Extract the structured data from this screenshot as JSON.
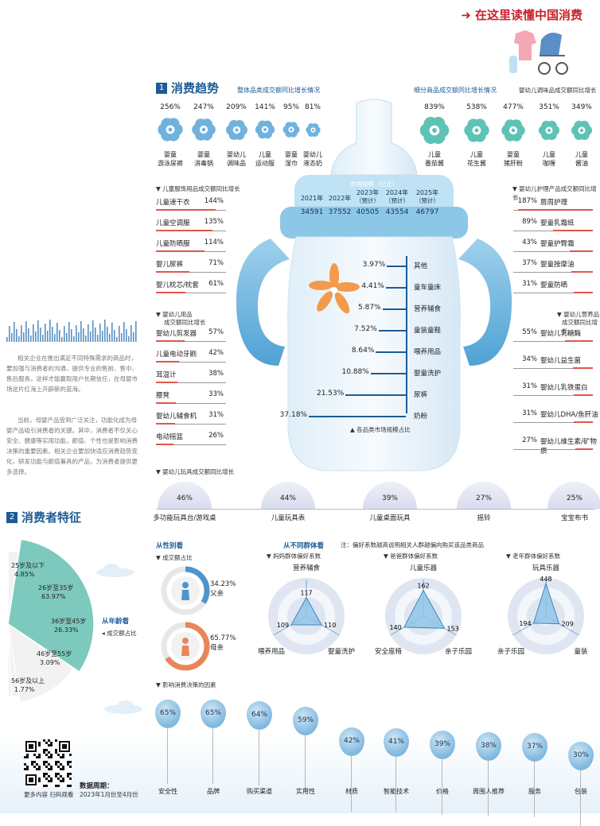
{
  "header": {
    "title": "在这里读懂中国消费"
  },
  "section1": {
    "num": "1",
    "title": "消费趋势",
    "overall_subtitle": "整体品类成交额同比增长情况",
    "segment_subtitle": "细分商品成交额同比增长情况",
    "seasoning_subtitle": "婴幼儿调味品成交额同比增长"
  },
  "overall_items": [
    {
      "pct": "256%",
      "label1": "婴童",
      "label2": "游泳尿裤"
    },
    {
      "pct": "247%",
      "label1": "婴童",
      "label2": "消毒锅"
    },
    {
      "pct": "209%",
      "label1": "婴幼儿",
      "label2": "调味品"
    },
    {
      "pct": "141%",
      "label1": "儿童",
      "label2": "运动服"
    },
    {
      "pct": "95%",
      "label1": "婴童",
      "label2": "湿巾"
    },
    {
      "pct": "81%",
      "label1": "婴幼儿",
      "label2": "液态奶"
    }
  ],
  "seasoning_items": [
    {
      "pct": "839%",
      "label1": "儿童",
      "label2": "番茄酱"
    },
    {
      "pct": "538%",
      "label1": "儿童",
      "label2": "花生酱"
    },
    {
      "pct": "477%",
      "label1": "婴童",
      "label2": "猪肝粉"
    },
    {
      "pct": "351%",
      "label1": "儿童",
      "label2": "咖喱"
    },
    {
      "pct": "349%",
      "label1": "儿童",
      "label2": "酱油"
    }
  ],
  "market": {
    "title": "市场规模（亿元）",
    "years": [
      "2021年",
      "2022年",
      "2023年",
      "2024年",
      "2025年"
    ],
    "notes": [
      "",
      "",
      "（预计）",
      "（预计）",
      "（预计）"
    ],
    "values": [
      "34591",
      "37552",
      "40505",
      "43554",
      "46797"
    ]
  },
  "share_legend": "各品类市场规模占比",
  "shares": [
    {
      "pct": "3.97%",
      "label": "其他",
      "value": 3.97
    },
    {
      "pct": "4.41%",
      "label": "童车童床",
      "value": 4.41
    },
    {
      "pct": "5.87%",
      "label": "营养辅食",
      "value": 5.87
    },
    {
      "pct": "7.52%",
      "label": "童装童鞋",
      "value": 7.52
    },
    {
      "pct": "8.64%",
      "label": "喂养用品",
      "value": 8.64
    },
    {
      "pct": "10.88%",
      "label": "婴童洗护",
      "value": 10.88
    },
    {
      "pct": "21.53%",
      "label": "尿裤",
      "value": 21.53
    },
    {
      "pct": "37.18%",
      "label": "奶粉",
      "value": 37.18
    }
  ],
  "left_lists": {
    "clothing_title": "儿童服饰用品成交额同比增长",
    "clothing": [
      {
        "label": "儿童速干衣",
        "pct": "144%"
      },
      {
        "label": "儿童空调服",
        "pct": "135%"
      },
      {
        "label": "儿童防晒服",
        "pct": "114%"
      },
      {
        "label": "婴儿尿裤",
        "pct": "71%"
      },
      {
        "label": "婴儿枕芯/枕套",
        "pct": "61%"
      }
    ],
    "supplies_title1": "婴幼儿用品",
    "supplies_title2": "成交额同比增长",
    "supplies": [
      {
        "label": "婴幼儿剪发器",
        "pct": "57%"
      },
      {
        "label": "儿童电动牙刷",
        "pct": "42%"
      },
      {
        "label": "耳温计",
        "pct": "38%"
      },
      {
        "label": "腰凳",
        "pct": "33%"
      },
      {
        "label": "婴幼儿辅食机",
        "pct": "31%"
      },
      {
        "label": "电动摇篮",
        "pct": "26%"
      }
    ]
  },
  "right_lists": {
    "care_title": "婴幼儿护理产品成交额同比增长",
    "care": [
      {
        "label": "唇周护理",
        "pct": "187%"
      },
      {
        "label": "婴童乳霜纸",
        "pct": "89%"
      },
      {
        "label": "婴童护臀霜",
        "pct": "43%"
      },
      {
        "label": "婴童按摩油",
        "pct": "37%"
      },
      {
        "label": "婴童防晒",
        "pct": "31%"
      }
    ],
    "nutrition_title1": "婴幼儿营养品",
    "nutrition_title2": "成交额同比增长",
    "nutrition": [
      {
        "label": "婴幼儿乳糖酶",
        "pct": "55%"
      },
      {
        "label": "婴幼儿益生菌",
        "pct": "34%"
      },
      {
        "label": "婴幼儿乳铁蛋白",
        "pct": "31%"
      },
      {
        "label": "婴幼儿DHA/鱼肝油",
        "pct": "31%"
      },
      {
        "label": "婴幼儿维生素/矿物质",
        "pct": "27%"
      }
    ]
  },
  "toys": {
    "title": "婴幼儿玩具成交额同比增长",
    "items": [
      {
        "pct": "46%",
        "label": "多功能玩具台/游戏桌"
      },
      {
        "pct": "44%",
        "label": "儿童玩具表"
      },
      {
        "pct": "39%",
        "label": "儿童桌面玩具"
      },
      {
        "pct": "27%",
        "label": "摇铃"
      },
      {
        "pct": "25%",
        "label": "宝宝布书"
      }
    ]
  },
  "left_text": {
    "p1": "相关企业在推出满足不同特殊需求的商品时，要加强与消费者的沟通，提供专业的售前、售中、售后服务，这样才能赢取用户长期信任，在母婴市场这片红海上开辟新的蓝海。",
    "p2": "当前，母婴产品受到广泛关注，功能化成为母婴产品吸引消费者的关键。其中，消费者不仅关心安全、健康等实用功能，颜值、个性也是影响消费决策的重要因素。相关企业要加快适应消费趋势变化，研发功能与颜值兼具的产品，为消费者提供更多选择。"
  },
  "section2": {
    "num": "2",
    "title": "消费者特征"
  },
  "age": {
    "caption": "从年龄看",
    "legend": "成交额占比",
    "groups": [
      {
        "label": "25岁及以下",
        "pct": "4.85%",
        "value": 4.85
      },
      {
        "label": "26岁至35岁",
        "pct": "63.97%",
        "value": 63.97
      },
      {
        "label": "36岁至45岁",
        "pct": "26.33%",
        "value": 26.33
      },
      {
        "label": "46岁至55岁",
        "pct": "3.09%",
        "value": 3.09
      },
      {
        "label": "56岁及以上",
        "pct": "1.77%",
        "value": 1.77
      }
    ]
  },
  "role": {
    "caption": "从性别看",
    "legend": "成交额占比",
    "father_pct": "34.23%",
    "father_label": "父亲",
    "father_value": 34.23,
    "mother_pct": "65.77%",
    "mother_label": "母亲",
    "mother_value": 65.77
  },
  "groups_caption": "从不同群体看",
  "groups_note": "注：偏好系数越高说明相关人群越偏向购买该品类商品",
  "radars": [
    {
      "title": "妈妈群体偏好系数",
      "top": "营养辅食",
      "left": "喂养用品",
      "right": "婴童洗护",
      "v_top": 117,
      "v_left": 109,
      "v_right": 110
    },
    {
      "title": "爸爸群体偏好系数",
      "top": "儿童乐器",
      "left": "安全座椅",
      "right": "亲子乐园",
      "v_top": 162,
      "v_left": 140,
      "v_right": 153
    },
    {
      "title": "老年群体偏好系数",
      "top": "玩具乐器",
      "left": "亲子乐园",
      "right": "童装",
      "v_top": 448,
      "v_left": 194,
      "v_right": 209
    }
  ],
  "factors": {
    "title": "影响消费决策的因素",
    "items": [
      {
        "pct": "65%",
        "label": "安全性",
        "value": 65
      },
      {
        "pct": "65%",
        "label": "品牌",
        "value": 65
      },
      {
        "pct": "64%",
        "label": "购买渠道",
        "value": 64
      },
      {
        "pct": "59%",
        "label": "实用性",
        "value": 59
      },
      {
        "pct": "42%",
        "label": "材质",
        "value": 42
      },
      {
        "pct": "41%",
        "label": "智能技术",
        "value": 41
      },
      {
        "pct": "39%",
        "label": "价格",
        "value": 39
      },
      {
        "pct": "38%",
        "label": "周围人推荐",
        "value": 38
      },
      {
        "pct": "37%",
        "label": "服务",
        "value": 37
      },
      {
        "pct": "30%",
        "label": "包装",
        "value": 30
      }
    ]
  },
  "footer": {
    "qr_caption": "更多内容 扫码观看",
    "period_title": "数据周期：",
    "period": "2023年1月份至4月份"
  },
  "colors": {
    "blue": "#1d5b96",
    "light_blue": "#6fb3dd",
    "red": "#e2554c",
    "teal": "#5ec3b4",
    "orange": "#e9855a",
    "title_red": "#c9212c"
  }
}
